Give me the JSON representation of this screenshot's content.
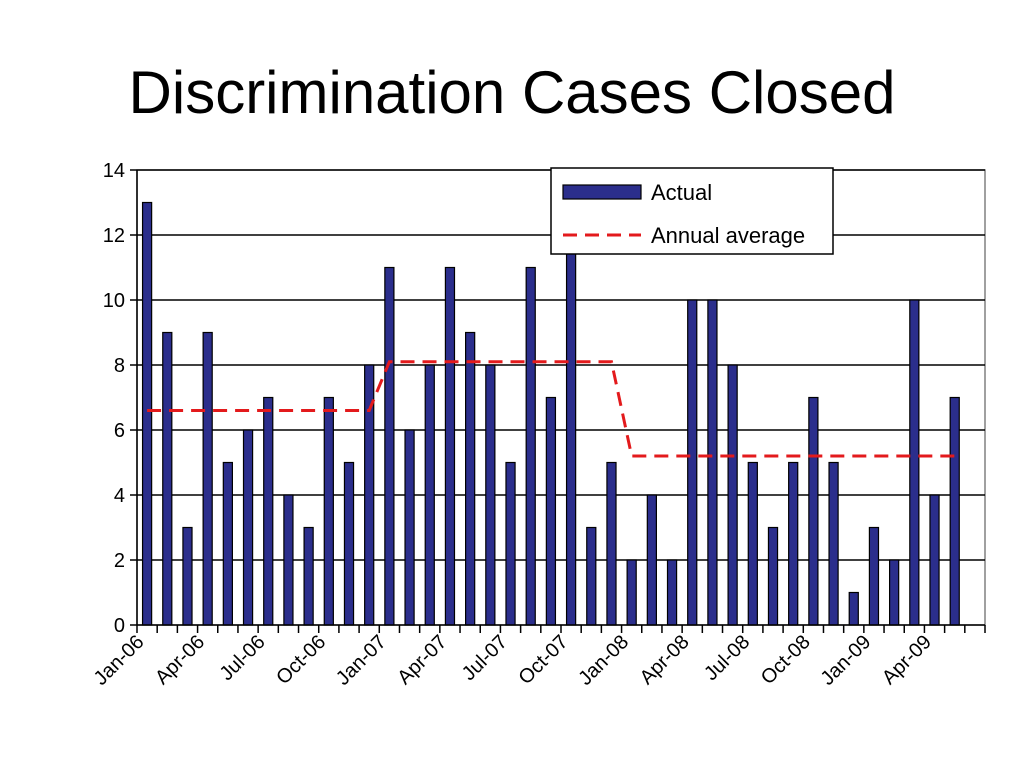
{
  "chart_data": {
    "type": "bar",
    "title": "Discrimination Cases Closed",
    "xlabel": "",
    "ylabel": "",
    "ylim": [
      0,
      14
    ],
    "yticks": [
      0,
      2,
      4,
      6,
      8,
      10,
      12,
      14
    ],
    "grid": true,
    "legend_position": "top-right",
    "categories": [
      "Jan-06",
      "Feb-06",
      "Mar-06",
      "Apr-06",
      "May-06",
      "Jun-06",
      "Jul-06",
      "Aug-06",
      "Sep-06",
      "Oct-06",
      "Nov-06",
      "Dec-06",
      "Jan-07",
      "Feb-07",
      "Mar-07",
      "Apr-07",
      "May-07",
      "Jun-07",
      "Jul-07",
      "Aug-07",
      "Sep-07",
      "Oct-07",
      "Nov-07",
      "Dec-07",
      "Jan-08",
      "Feb-08",
      "Mar-08",
      "Apr-08",
      "May-08",
      "Jun-08",
      "Jul-08",
      "Aug-08",
      "Sep-08",
      "Oct-08",
      "Nov-08",
      "Dec-08",
      "Jan-09",
      "Feb-09",
      "Mar-09",
      "Apr-09",
      "May-09",
      "Jun-09"
    ],
    "x_tick_labels": [
      "Jan-06",
      "Apr-06",
      "Jul-06",
      "Oct-06",
      "Jan-07",
      "Apr-07",
      "Jul-07",
      "Oct-07",
      "Jan-08",
      "Apr-08",
      "Jul-08",
      "Oct-08",
      "Jan-09",
      "Apr-09"
    ],
    "series": [
      {
        "name": "Actual",
        "type": "bar",
        "color": "#2B2E8C",
        "values": [
          13,
          9,
          3,
          9,
          5,
          6,
          7,
          4,
          3,
          7,
          5,
          8,
          11,
          6,
          8,
          11,
          9,
          8,
          5,
          11,
          7,
          12,
          3,
          5,
          2,
          4,
          2,
          10,
          10,
          8,
          5,
          3,
          5,
          7,
          5,
          1,
          3,
          2,
          10,
          4,
          7,
          null
        ]
      },
      {
        "name": "Annual average",
        "type": "line",
        "style": "dashed",
        "color": "#E31A1C",
        "values": [
          6.6,
          6.6,
          6.6,
          6.6,
          6.6,
          6.6,
          6.6,
          6.6,
          6.6,
          6.6,
          6.6,
          6.6,
          8.1,
          8.1,
          8.1,
          8.1,
          8.1,
          8.1,
          8.1,
          8.1,
          8.1,
          8.1,
          8.1,
          8.1,
          5.2,
          5.2,
          5.2,
          5.2,
          5.2,
          5.2,
          5.2,
          5.2,
          5.2,
          5.2,
          5.2,
          5.2,
          5.2,
          5.2,
          5.2,
          5.2,
          5.2,
          null
        ]
      }
    ]
  }
}
